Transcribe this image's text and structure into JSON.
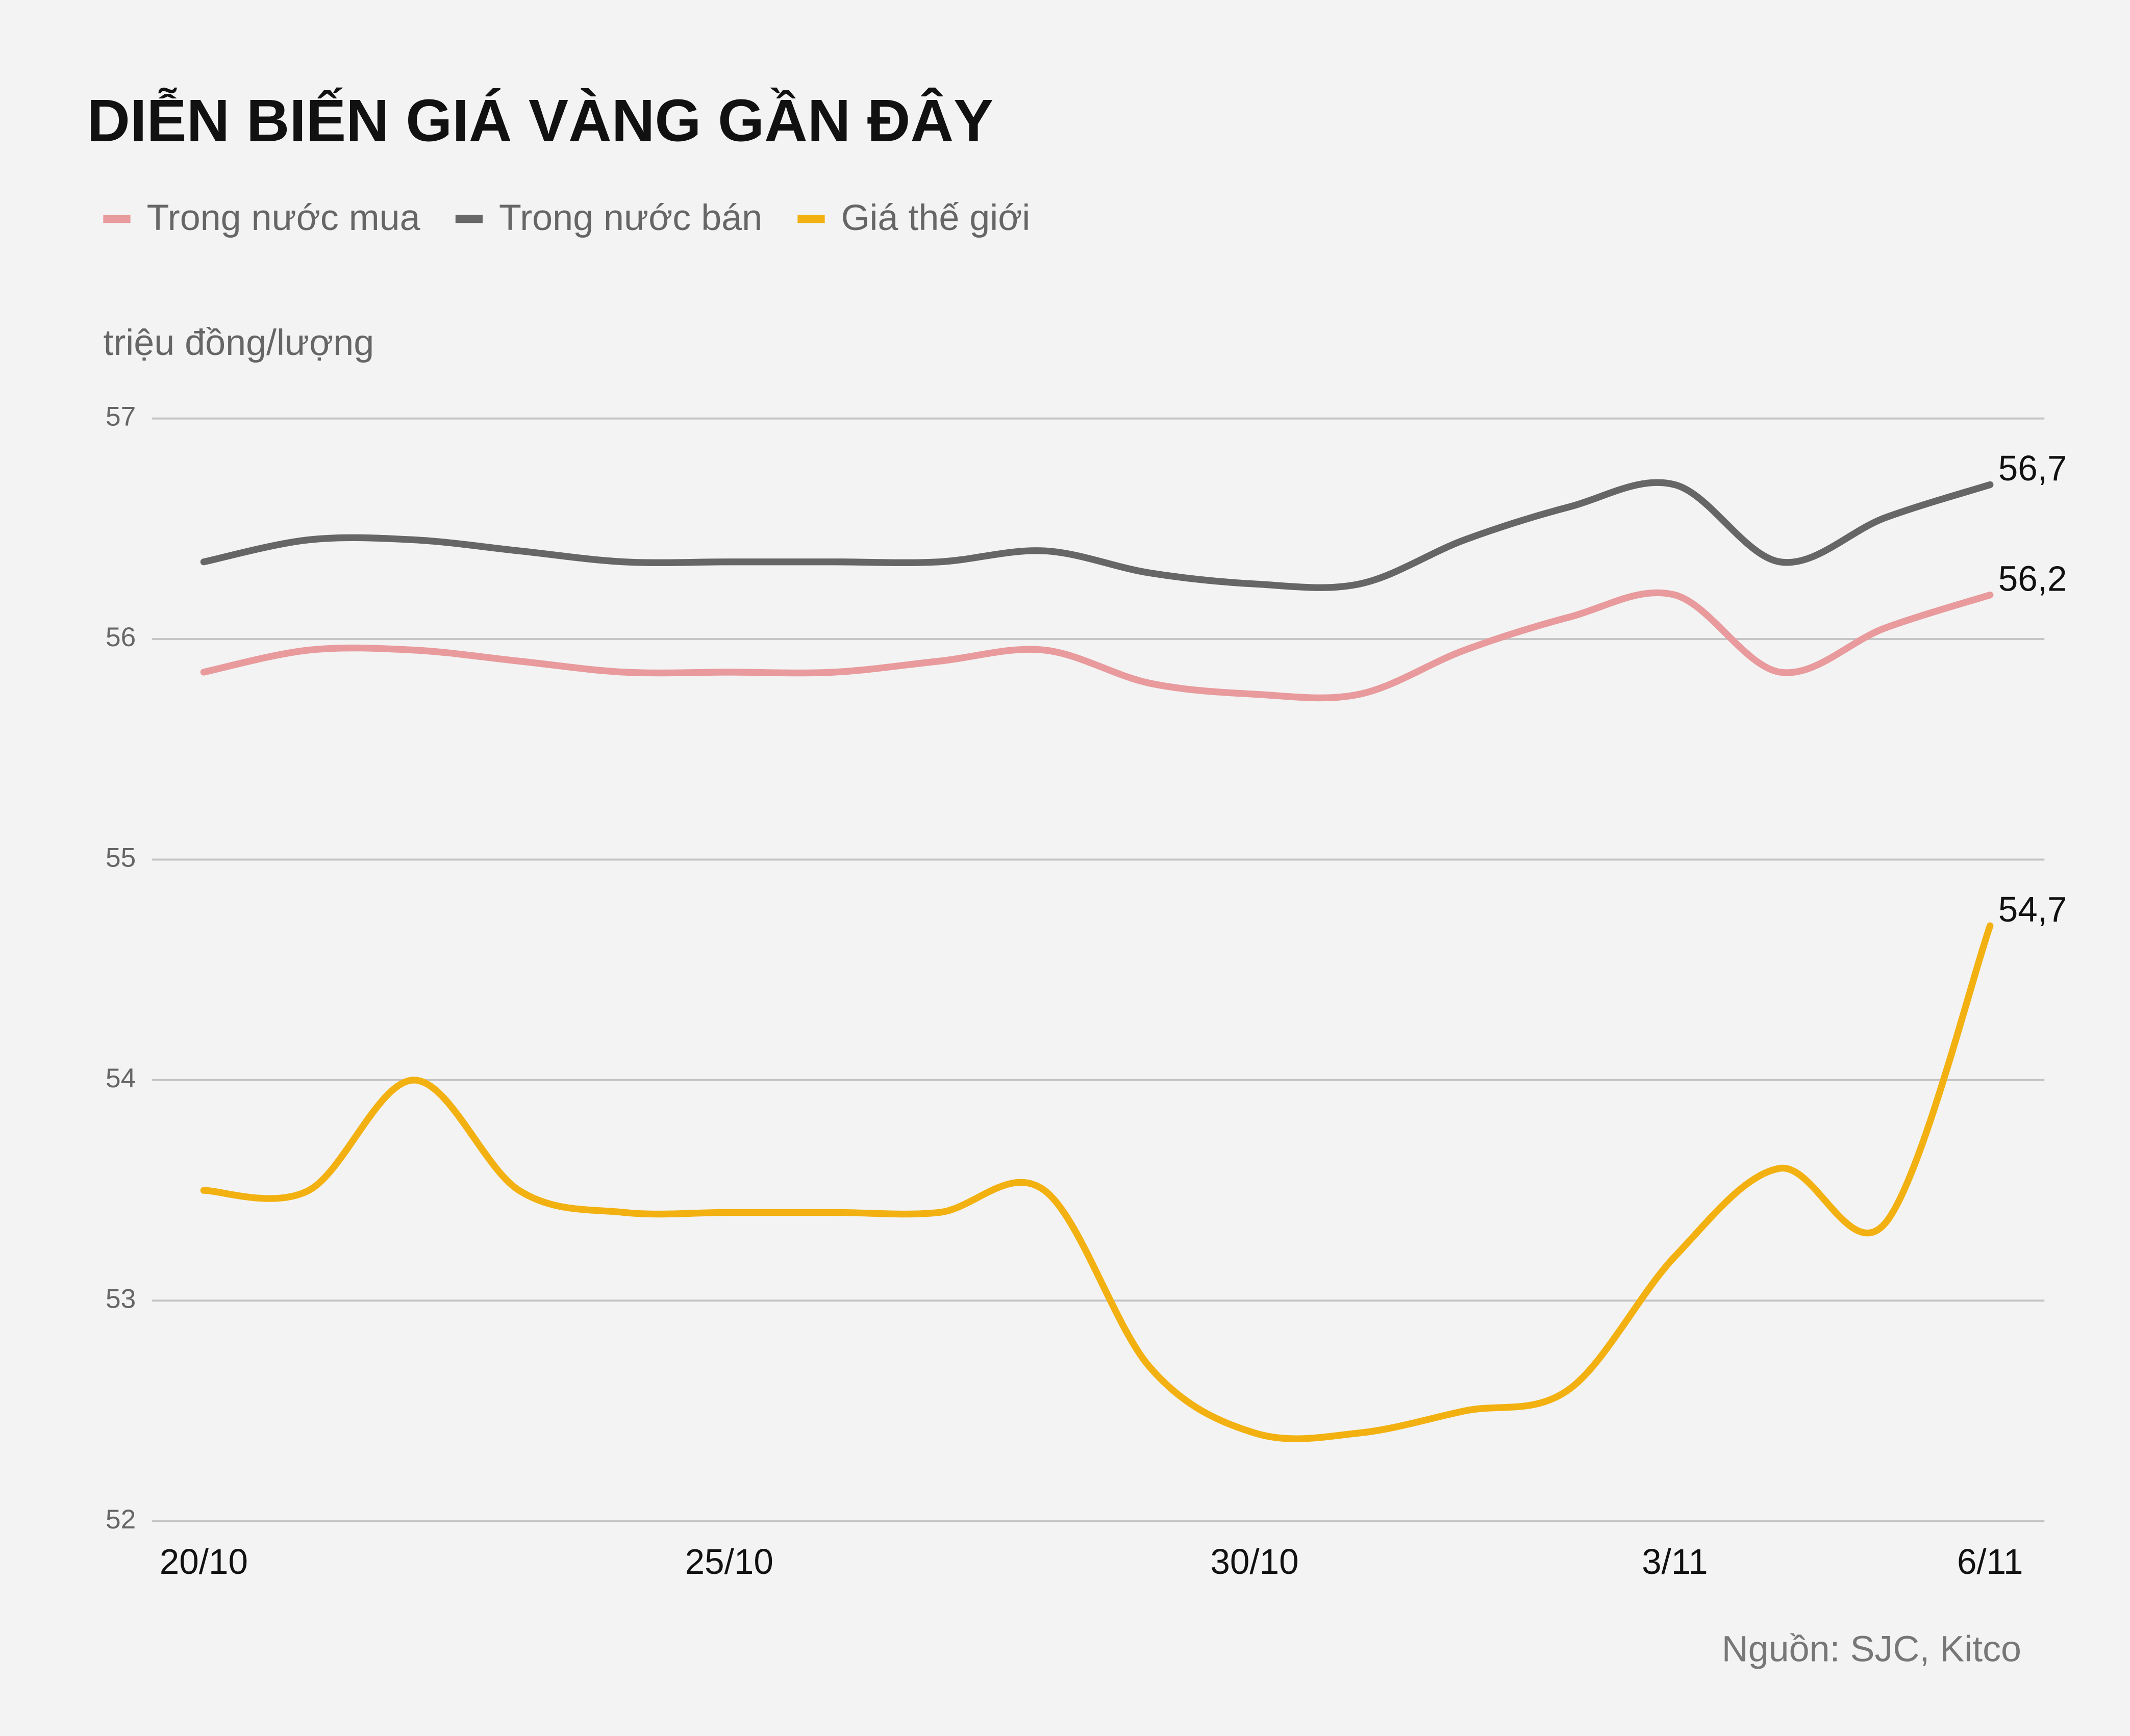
{
  "chart_data": {
    "type": "line",
    "title": "DIỄN BIẾN GIÁ VÀNG GẦN ĐÂY",
    "y_label": "triệu đồng/lượng",
    "source": "Nguồn: SJC, Kitco",
    "categories": [
      "20/10",
      null,
      null,
      null,
      null,
      "25/10",
      null,
      null,
      null,
      null,
      "30/10",
      null,
      null,
      null,
      "3/11",
      null,
      null,
      "6/11"
    ],
    "series": [
      {
        "name": "Trong nước mua",
        "color": "#e89a9c",
        "values": [
          55.85,
          55.95,
          55.95,
          55.9,
          55.85,
          55.85,
          55.85,
          55.9,
          55.95,
          55.8,
          55.75,
          55.75,
          55.95,
          56.1,
          56.2,
          55.85,
          56.05,
          56.2
        ],
        "value_labels": [
          null,
          null,
          null,
          null,
          null,
          null,
          null,
          null,
          null,
          null,
          null,
          null,
          null,
          null,
          null,
          null,
          null,
          "56,2"
        ]
      },
      {
        "name": "Trong nước bán",
        "color": "#666666",
        "values": [
          56.35,
          56.45,
          56.45,
          56.4,
          56.35,
          56.35,
          56.35,
          56.35,
          56.4,
          56.3,
          56.25,
          56.25,
          56.45,
          56.6,
          56.7,
          56.35,
          56.55,
          56.7
        ],
        "value_labels": [
          null,
          null,
          null,
          null,
          null,
          null,
          null,
          null,
          null,
          null,
          null,
          null,
          null,
          null,
          null,
          null,
          null,
          "56,7"
        ]
      },
      {
        "name": "Giá thế giới",
        "color": "#f2b110",
        "values": [
          53.5,
          53.5,
          54.0,
          53.5,
          53.4,
          53.4,
          53.4,
          53.4,
          53.5,
          52.7,
          52.4,
          52.4,
          52.5,
          52.6,
          53.2,
          53.6,
          53.35,
          54.7
        ],
        "value_labels": [
          null,
          null,
          null,
          null,
          null,
          null,
          null,
          null,
          null,
          null,
          null,
          null,
          null,
          null,
          null,
          null,
          null,
          "54,7"
        ]
      }
    ],
    "ylim": [
      52,
      57
    ],
    "yticks": [
      52,
      53,
      54,
      55,
      56,
      57
    ],
    "grid": true
  }
}
